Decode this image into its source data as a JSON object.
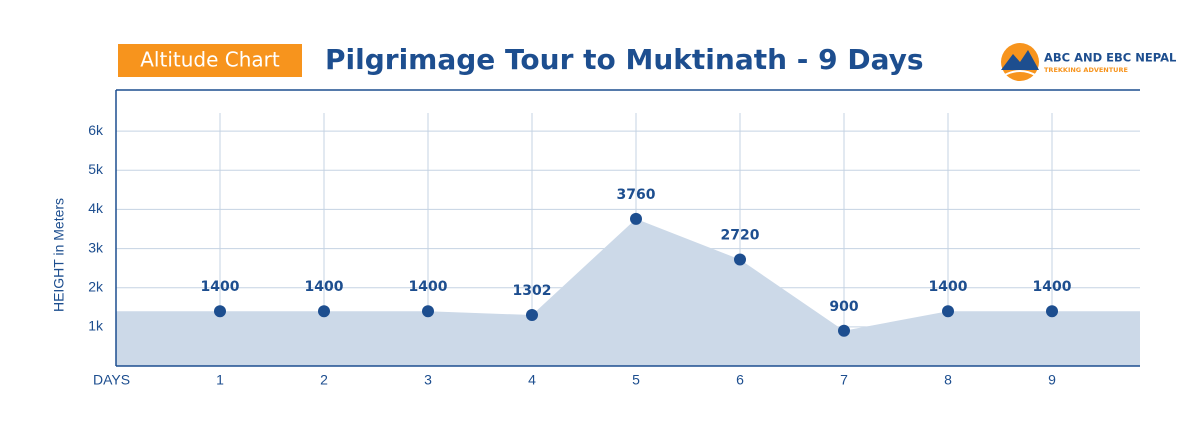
{
  "chart_data": {
    "type": "area",
    "badge": "Altitude Chart",
    "title": "Pilgrimage Tour to Muktinath - 9 Days",
    "x_label": "DAYS",
    "y_label": "HEIGHT in Meters",
    "categories": [
      "1",
      "2",
      "3",
      "4",
      "5",
      "6",
      "7",
      "8",
      "9"
    ],
    "values": [
      1400,
      1400,
      1400,
      1302,
      3760,
      2720,
      900,
      1400,
      1400
    ],
    "color": "#1d4e8f",
    "area_color": "#ccd9e8",
    "ylim": [
      0,
      7000
    ],
    "yticks": [
      {
        "value": 1000,
        "label": "1k"
      },
      {
        "value": 2000,
        "label": "2k"
      },
      {
        "value": 3000,
        "label": "3k"
      },
      {
        "value": 4000,
        "label": "4k"
      },
      {
        "value": 5000,
        "label": "5k"
      },
      {
        "value": 6000,
        "label": "6k"
      }
    ],
    "grid": true
  },
  "logo": {
    "name": "ABC AND EBC NEPAL",
    "tagline": "TREKKING ADVENTURE"
  }
}
